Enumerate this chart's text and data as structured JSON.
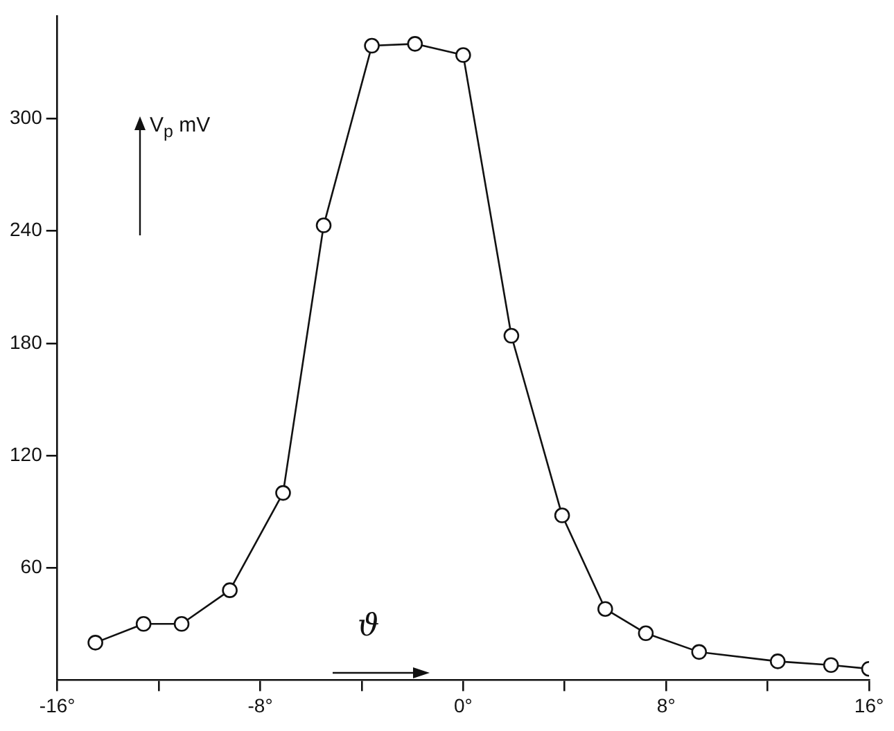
{
  "chart_data": {
    "type": "line",
    "xlabel": "ϑ",
    "ylabel": "V$_{p}$ mV",
    "x": [
      -14.5,
      -12.6,
      -11.1,
      -9.2,
      -7.1,
      -5.5,
      -3.6,
      -1.9,
      0,
      1.9,
      3.9,
      5.6,
      7.2,
      9.3,
      12.4,
      14.5,
      16
    ],
    "series": [
      {
        "color": "#111111",
        "values": [
          20,
          30,
          30,
          48,
          100,
          243,
          339,
          340,
          334,
          184,
          88,
          38,
          25,
          15,
          10,
          8,
          6
        ]
      }
    ],
    "xlim": [
      -16,
      16
    ],
    "xticks": [
      {
        "value": -16,
        "label": "-16°"
      },
      {
        "value": -12,
        "label": null
      },
      {
        "value": -8,
        "label": "-8°"
      },
      {
        "value": -4,
        "label": null
      },
      {
        "value": 0,
        "label": "0°"
      },
      {
        "value": 4,
        "label": null
      },
      {
        "value": 8,
        "label": "8°"
      },
      {
        "value": 12,
        "label": null
      },
      {
        "value": 16,
        "label": "16°"
      }
    ],
    "ylim": [
      0,
      355
    ],
    "yticks": [
      60,
      120,
      180,
      240,
      300
    ],
    "marker": "circle",
    "line_style": "solid",
    "grid": false,
    "legend": false
  }
}
